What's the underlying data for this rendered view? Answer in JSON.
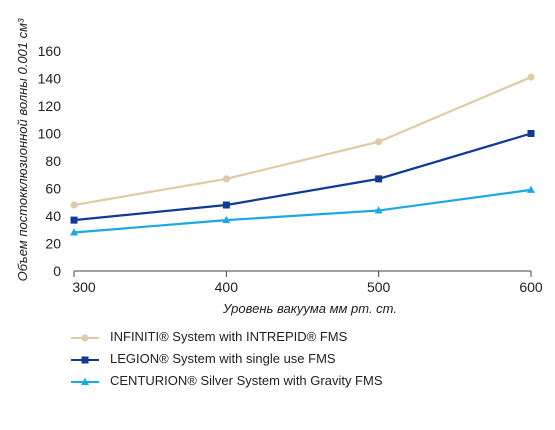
{
  "chart_data": {
    "type": "line",
    "x": [
      300,
      400,
      500,
      600
    ],
    "xticks": [
      "300",
      "400",
      "500",
      "600"
    ],
    "yticks": [
      "0",
      "20",
      "40",
      "60",
      "80",
      "100",
      "120",
      "140",
      "160"
    ],
    "xlim": [
      300,
      600
    ],
    "ylim": [
      0,
      160
    ],
    "xlabel": "Уровень вакуума мм рт. ст.",
    "ylabel": "Объем постокклюзионной волны 0.001 см³",
    "grid": false,
    "legend_position": "bottom",
    "series": [
      {
        "name": "INFINITI® System with INTREPID® FMS",
        "color": "#dfcba8",
        "marker": "circle",
        "values": [
          48,
          67,
          94,
          141
        ]
      },
      {
        "name": "LEGION® System with single use FMS",
        "color": "#0f3a96",
        "marker": "square",
        "values": [
          37,
          48,
          67,
          100
        ]
      },
      {
        "name": "CENTURION® Silver System with Gravity FMS",
        "color": "#1ba9e3",
        "marker": "triangle",
        "values": [
          28,
          37,
          44,
          59
        ]
      }
    ]
  }
}
